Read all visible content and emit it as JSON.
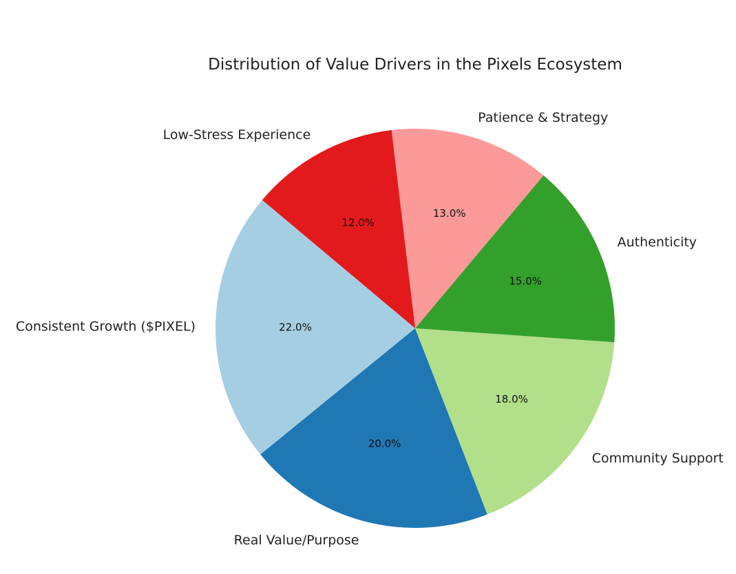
{
  "chart_data": {
    "type": "pie",
    "title": "Distribution of Value Drivers in the Pixels Ecosystem",
    "categories": [
      "Consistent Growth ($PIXEL)",
      "Real Value/Purpose",
      "Community Support",
      "Authenticity",
      "Patience & Strategy",
      "Low-Stress Experience"
    ],
    "values": [
      22.0,
      20.0,
      18.0,
      15.0,
      13.0,
      12.0
    ],
    "pct_labels": [
      "22.0%",
      "20.0%",
      "18.0%",
      "15.0%",
      "13.0%",
      "12.0%"
    ],
    "colors": [
      "#a6cee3",
      "#1f78b4",
      "#b2df8a",
      "#33a02c",
      "#fb9a99",
      "#e31a1c"
    ],
    "start_angle_deg": 140,
    "direction": "counterclockwise"
  }
}
